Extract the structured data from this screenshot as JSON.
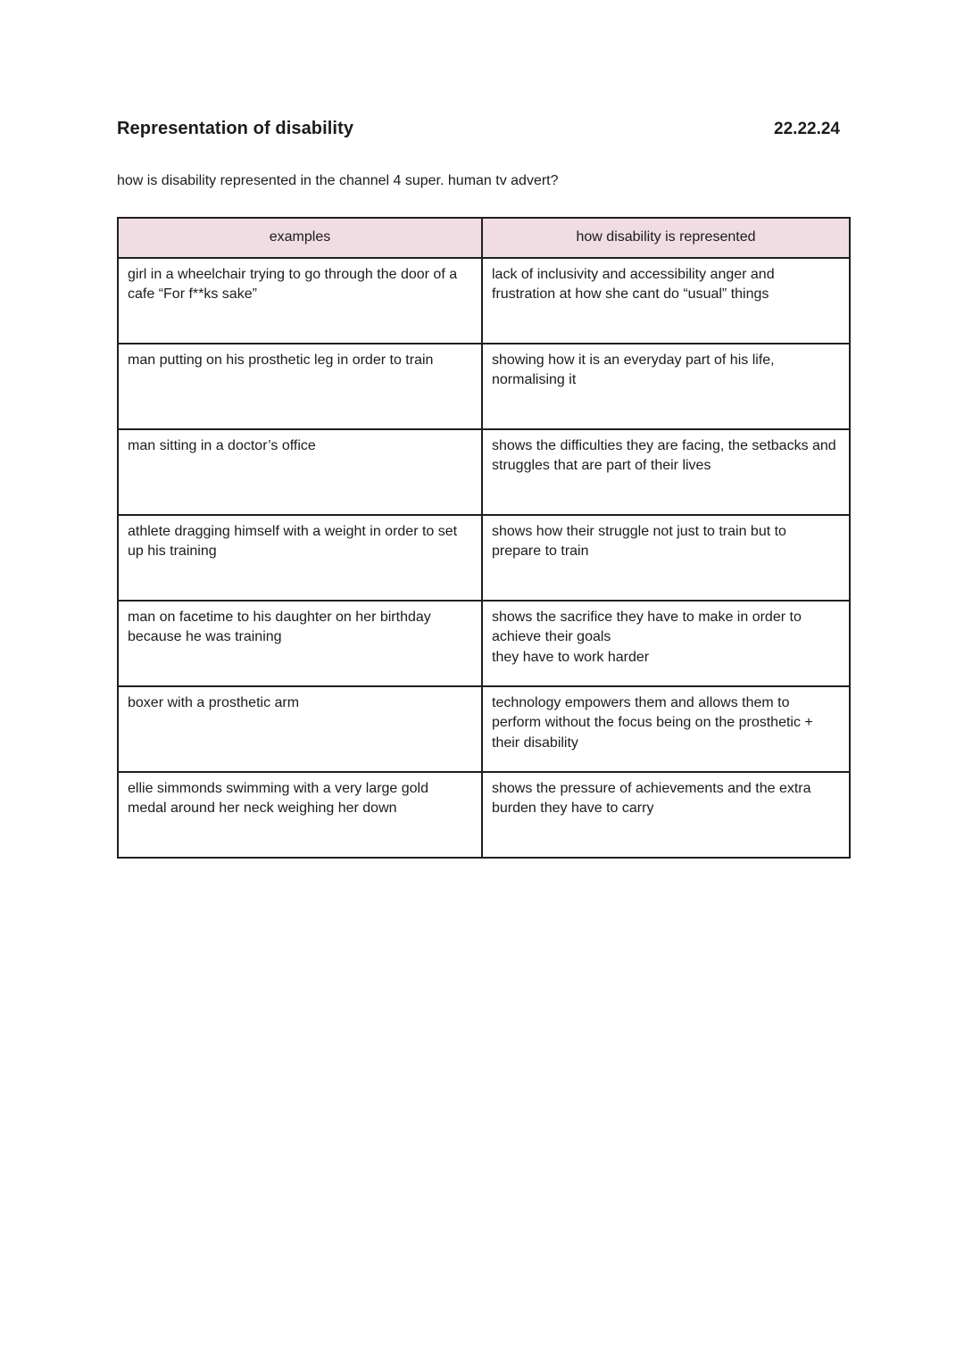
{
  "page": {
    "title": "Representation of disability",
    "date": "22.22.24",
    "question": "how is disability represented in the channel 4 super. human tv advert?"
  },
  "table": {
    "headers": [
      "examples",
      "how disability is represented"
    ],
    "rows": [
      {
        "example": "girl in a wheelchair trying to go through the door of a cafe “For f**ks sake”",
        "representation": "lack of inclusivity and accessibility anger and frustration at how she cant do “usual” things"
      },
      {
        "example": "man putting on his prosthetic leg in order to train",
        "representation": "showing how it is an everyday part of his life, normalising it"
      },
      {
        "example": "man sitting in a doctor’s office",
        "representation": "shows the difficulties they are facing, the setbacks and struggles that are part of their lives"
      },
      {
        "example": "athlete dragging himself with a weight in order to set up his training",
        "representation": "shows how their struggle not just to train but to prepare to train"
      },
      {
        "example": "man on facetime to his daughter on her birthday because he was training",
        "representation": "shows the sacrifice they have to make in order to achieve their goals\nthey have to work harder"
      },
      {
        "example": "boxer with a prosthetic arm",
        "representation": "technology empowers them and allows them to perform without the focus being on the prosthetic + their disability"
      },
      {
        "example": "ellie simmonds swimming with a very large gold medal around her neck weighing her down",
        "representation": "shows the pressure of achievements and the extra burden they have to carry"
      }
    ]
  },
  "colors": {
    "header_bg": "#f0dce3",
    "border": "#1f1f1f",
    "text": "#1c1c1c",
    "page_bg": "#ffffff"
  }
}
